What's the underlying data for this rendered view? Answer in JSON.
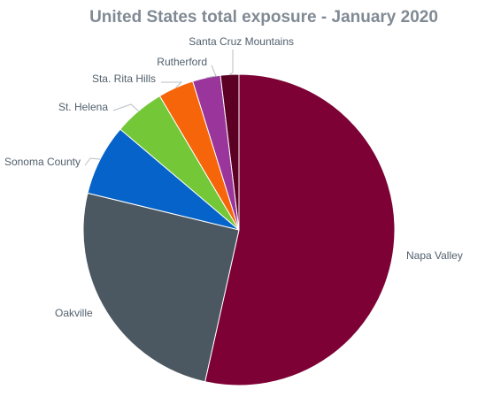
{
  "chart_data": {
    "type": "pie",
    "title": "United States total exposure - January 2020",
    "start_angle_deg": 0,
    "direction": "clockwise",
    "slices": [
      {
        "label": "Napa Valley",
        "value": 53.5,
        "color": "#7d0134"
      },
      {
        "label": "Oakville",
        "value": 25.3,
        "color": "#4b5761"
      },
      {
        "label": "Sonoma County",
        "value": 7.4,
        "color": "#0563c9"
      },
      {
        "label": "St. Helena",
        "value": 5.3,
        "color": "#74c838"
      },
      {
        "label": "Sta. Rita Hills",
        "value": 3.7,
        "color": "#f66509"
      },
      {
        "label": "Rutherford",
        "value": 2.9,
        "color": "#9a359c"
      },
      {
        "label": "Santa Cruz Mountains",
        "value": 1.9,
        "color": "#5c0123"
      }
    ],
    "legend": "none"
  }
}
